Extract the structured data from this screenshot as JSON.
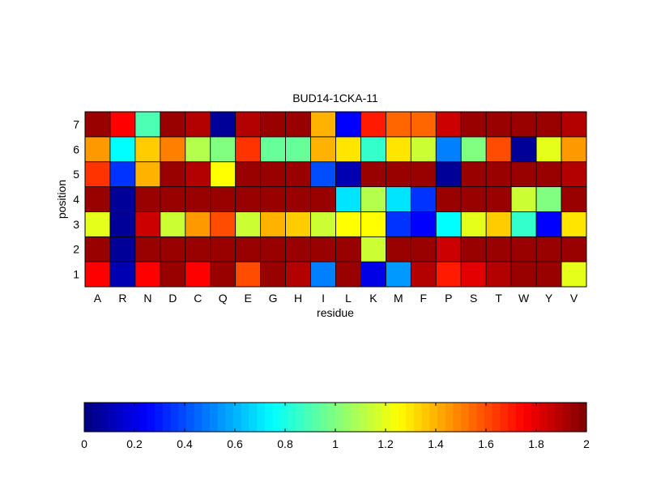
{
  "chart_data": {
    "type": "heatmap",
    "title": "BUD14-1CKA-11",
    "xlabel": "residue",
    "ylabel": "position",
    "x_categories": [
      "A",
      "R",
      "N",
      "D",
      "C",
      "Q",
      "E",
      "G",
      "H",
      "I",
      "L",
      "K",
      "M",
      "F",
      "P",
      "S",
      "T",
      "W",
      "Y",
      "V"
    ],
    "y_categories": [
      "1",
      "2",
      "3",
      "4",
      "5",
      "6",
      "7"
    ],
    "y_order": "bottom-to-top",
    "colormap": "jet",
    "clim": [
      0,
      2
    ],
    "colorbar": {
      "orientation": "horizontal",
      "placement": "bottom",
      "ticks": [
        0,
        0.2,
        0.4,
        0.6,
        0.8,
        1,
        1.2,
        1.4,
        1.6,
        1.8,
        2
      ],
      "tick_labels": [
        "0",
        "0.2",
        "0.4",
        "0.6",
        "0.8",
        "1",
        "1.2",
        "1.4",
        "1.6",
        "1.8",
        "2"
      ]
    },
    "values": [
      [
        1.75,
        0.1,
        1.75,
        1.95,
        1.75,
        1.95,
        1.6,
        1.95,
        1.9,
        0.5,
        1.95,
        0.2,
        0.55,
        1.9,
        1.7,
        1.8,
        1.9,
        1.95,
        1.95,
        1.2
      ],
      [
        1.95,
        0.05,
        1.95,
        1.95,
        1.95,
        1.95,
        1.95,
        1.95,
        1.95,
        1.95,
        1.95,
        1.15,
        1.95,
        1.95,
        1.85,
        1.95,
        1.95,
        1.95,
        1.95,
        1.95
      ],
      [
        1.2,
        0.05,
        1.85,
        1.15,
        1.45,
        1.6,
        1.15,
        1.4,
        1.35,
        1.15,
        1.25,
        1.25,
        0.35,
        0.25,
        0.75,
        1.2,
        1.35,
        0.85,
        0.25,
        1.3
      ],
      [
        1.95,
        0.05,
        1.95,
        1.95,
        1.95,
        1.95,
        1.95,
        1.95,
        1.95,
        1.95,
        0.7,
        1.1,
        0.7,
        0.35,
        1.95,
        1.95,
        1.95,
        1.15,
        1.0,
        1.95
      ],
      [
        1.65,
        0.35,
        1.4,
        1.95,
        1.9,
        1.25,
        1.95,
        1.95,
        1.95,
        0.4,
        0.1,
        1.95,
        1.95,
        1.95,
        0.05,
        1.95,
        1.95,
        1.95,
        1.95,
        1.9
      ],
      [
        1.45,
        0.75,
        1.35,
        1.5,
        1.1,
        1.0,
        1.65,
        0.95,
        0.95,
        1.4,
        1.3,
        0.85,
        1.3,
        1.15,
        0.5,
        1.0,
        1.6,
        0.05,
        1.2,
        1.45
      ],
      [
        1.95,
        1.75,
        0.9,
        1.95,
        1.9,
        0.05,
        1.9,
        1.95,
        1.95,
        1.4,
        0.25,
        1.7,
        1.55,
        1.55,
        1.85,
        1.95,
        1.95,
        1.95,
        1.95,
        1.9
      ]
    ]
  }
}
